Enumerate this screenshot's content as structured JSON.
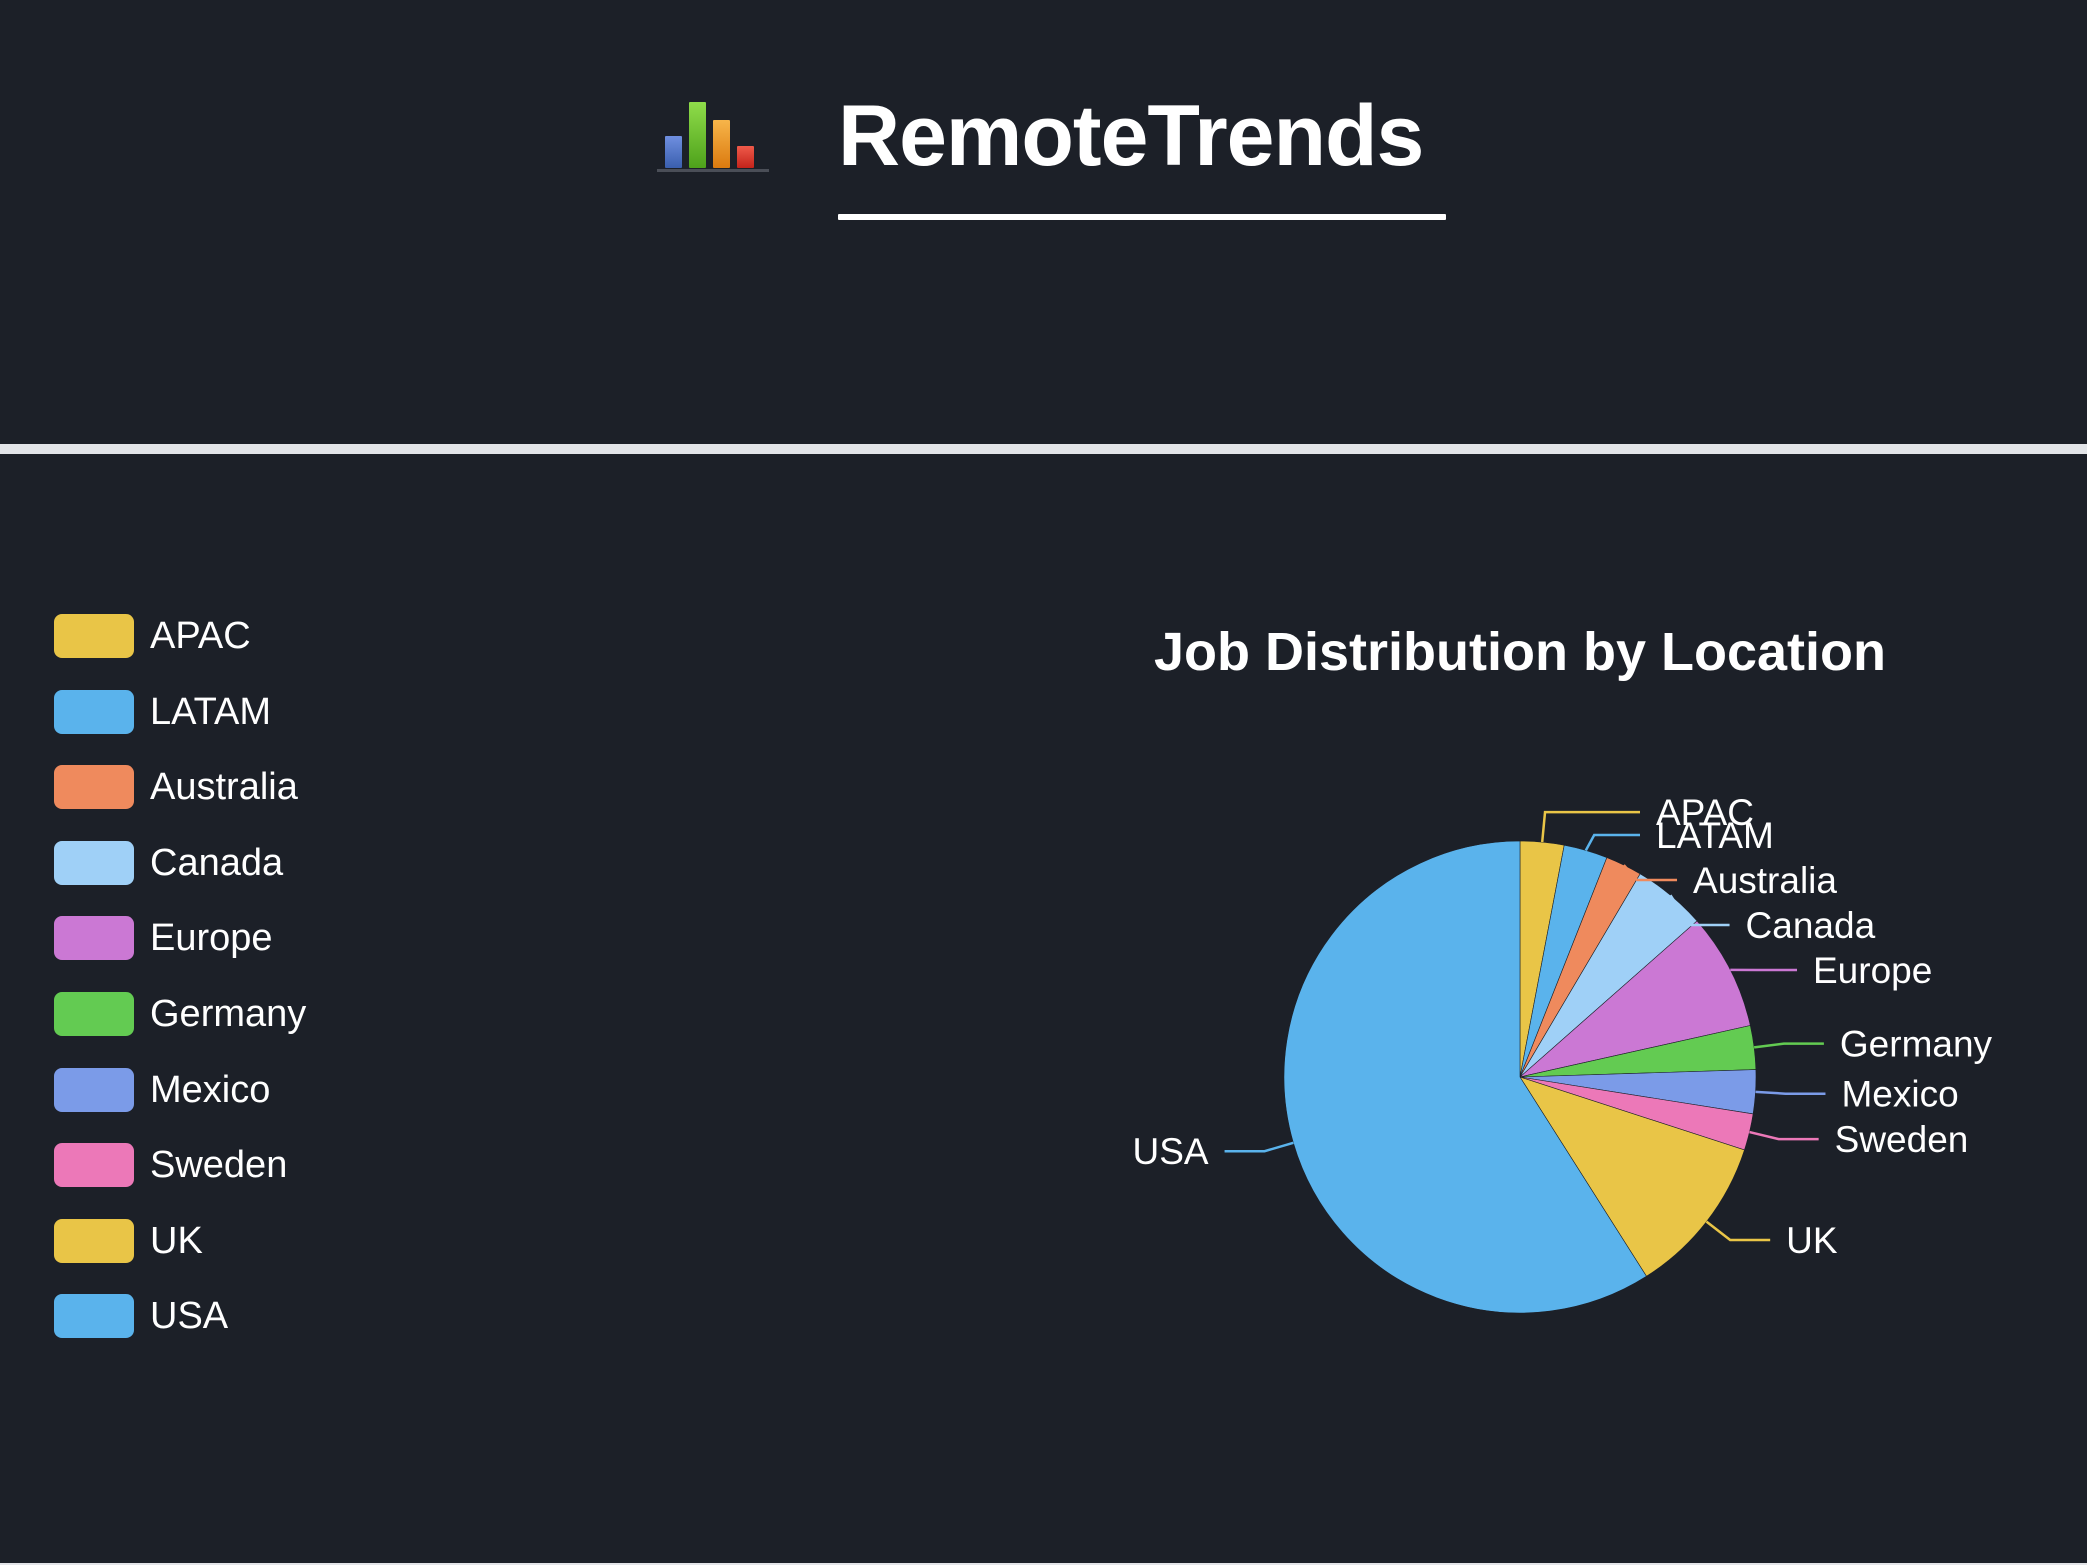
{
  "header": {
    "logo_icon": "bar-chart-icon",
    "title": "RemoteTrends"
  },
  "colors": {
    "background": "#1c2028",
    "divider": "#e2e4e8",
    "text": "#ffffff"
  },
  "chart_data": {
    "type": "pie",
    "title": "Job Distribution by Location",
    "legend_position": "left",
    "labels_position": "outside-with-leader-lines",
    "slices": [
      {
        "label": "APAC",
        "value": 3,
        "color": "#e9c547"
      },
      {
        "label": "LATAM",
        "value": 3,
        "color": "#5ab3ec"
      },
      {
        "label": "Australia",
        "value": 2.5,
        "color": "#ef8a5d"
      },
      {
        "label": "Canada",
        "value": 5,
        "color": "#9fd0f7"
      },
      {
        "label": "Europe",
        "value": 8,
        "color": "#cb78d4"
      },
      {
        "label": "Germany",
        "value": 3,
        "color": "#63cb52"
      },
      {
        "label": "Mexico",
        "value": 3,
        "color": "#7b9be8"
      },
      {
        "label": "Sweden",
        "value": 2.5,
        "color": "#ec78b8"
      },
      {
        "label": "UK",
        "value": 11,
        "color": "#e9c547"
      },
      {
        "label": "USA",
        "value": 59,
        "color": "#5ab3ec"
      }
    ]
  }
}
